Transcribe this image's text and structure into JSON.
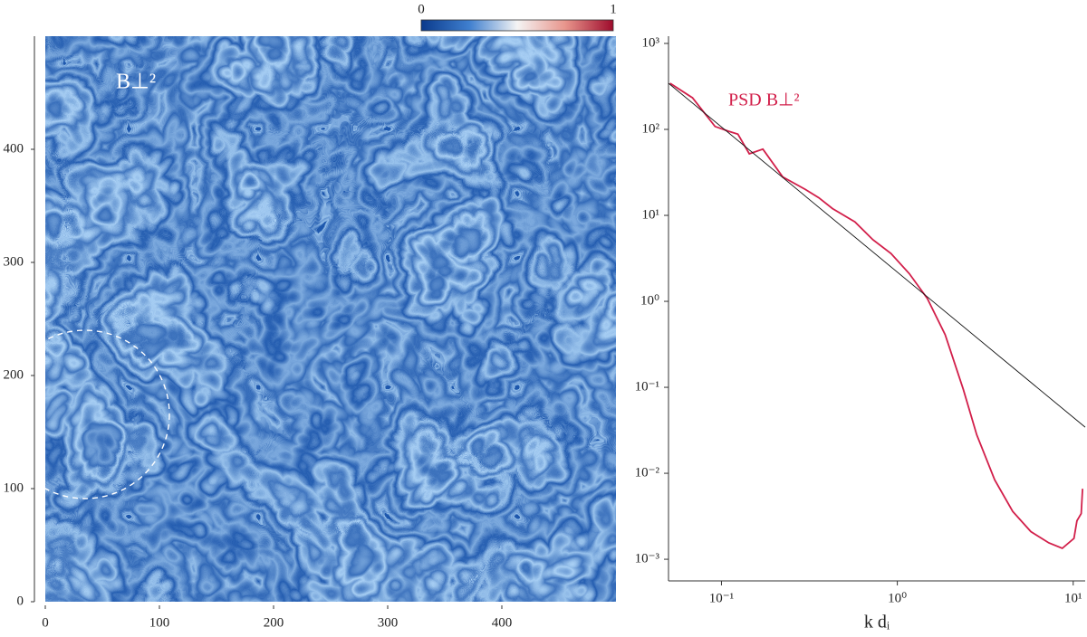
{
  "chart_data": [
    {
      "type": "image",
      "annotation": "B⊥²",
      "xlim": [
        0,
        500
      ],
      "ylim": [
        0,
        500
      ],
      "xticks": [
        0,
        100,
        200,
        300,
        400
      ],
      "yticks": [
        0,
        100,
        200,
        300,
        400
      ],
      "colorbar": {
        "lim": [
          0,
          1
        ],
        "ticks": [
          0,
          1
        ],
        "colors": [
          "#0a3a8c",
          "#3f7fcf",
          "#f4f4f4",
          "#e8958c",
          "#9e0b2c"
        ]
      }
    },
    {
      "type": "line",
      "xlabel": "k dᵢ",
      "xscale": "log",
      "yscale": "log",
      "xlim": [
        0.05,
        11.7
      ],
      "ylim": [
        0.00056,
        1000
      ],
      "xticks": [
        {
          "value": 0.1,
          "label": "10⁻¹"
        },
        {
          "value": 1,
          "label": "10⁰"
        },
        {
          "value": 10,
          "label": "10¹"
        }
      ],
      "yticks": [
        {
          "value": 1000,
          "label": "10³"
        },
        {
          "value": 100,
          "label": "10²"
        },
        {
          "value": 10,
          "label": "10¹"
        },
        {
          "value": 1,
          "label": "10⁰"
        },
        {
          "value": 0.1,
          "label": "10⁻¹"
        },
        {
          "value": 0.01,
          "label": "10⁻²"
        },
        {
          "value": 0.001,
          "label": "10⁻³"
        }
      ],
      "series": [
        {
          "name": "PSD B⊥²",
          "color": "#d21f4a",
          "x": [
            0.051,
            0.0685,
            0.092,
            0.11,
            0.124,
            0.144,
            0.172,
            0.223,
            0.3,
            0.358,
            0.428,
            0.574,
            0.727,
            0.92,
            1.17,
            1.48,
            1.87,
            2.37,
            2.83,
            3.58,
            4.53,
            5.74,
            7.27,
            8.67,
            10.1,
            10.5,
            11.1,
            11.3
          ],
          "values": [
            344,
            233,
            108,
            95,
            88,
            52,
            59,
            28,
            20,
            16,
            12,
            8.4,
            5.2,
            3.6,
            2.1,
            1.08,
            0.41,
            0.095,
            0.028,
            0.0084,
            0.0036,
            0.0021,
            0.00155,
            0.00134,
            0.00175,
            0.0028,
            0.0034,
            0.0066
          ]
        },
        {
          "color": "#111111",
          "x": [
            0.05,
            11.7
          ],
          "values": [
            344,
            0.0344
          ]
        }
      ]
    }
  ]
}
